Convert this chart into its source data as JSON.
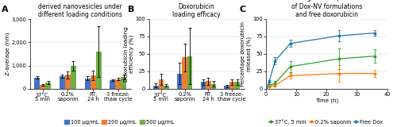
{
  "panel_a": {
    "title": "Size of doxorubicin loaded cell\nderived nanovesicles under\ndifferent loading conditions",
    "ylabel": "Z-average (nm)",
    "ylim": [
      0,
      3000
    ],
    "yticks": [
      0,
      1000,
      2000,
      3000
    ],
    "yticklabels": [
      "0",
      "1,000",
      "2,000",
      "3,000"
    ],
    "groups": [
      "37°C,\n5 min",
      "0.2%\nsaponin",
      "RT,\n24 h",
      "3 freeze-\nthaw cycle"
    ],
    "bars": {
      "100": [
        480,
        550,
        450,
        380
      ],
      "200": [
        180,
        600,
        580,
        420
      ],
      "500": [
        280,
        1000,
        1600,
        500
      ]
    },
    "errors": {
      "100": [
        50,
        60,
        80,
        40
      ],
      "200": [
        30,
        150,
        200,
        50
      ],
      "500": [
        60,
        200,
        1100,
        100
      ]
    }
  },
  "panel_b": {
    "title": "Doxorubicin\nloading efficacy",
    "ylabel": "Doxorubicin loading\nefficiency (%)",
    "ylim": [
      0,
      100
    ],
    "yticks": [
      0,
      25,
      50,
      75,
      100
    ],
    "yticklabels": [
      "0",
      "25",
      "50",
      "75",
      "100"
    ],
    "groups": [
      "37°C,\n5 min",
      "0.2%\nsaponin",
      "RT,\n24 h",
      "3 freeze-\nthaw cycle"
    ],
    "bars": {
      "100": [
        5,
        22,
        10,
        4
      ],
      "200": [
        14,
        45,
        11,
        10
      ],
      "500": [
        5,
        47,
        7,
        10
      ]
    },
    "errors": {
      "100": [
        3,
        15,
        4,
        2
      ],
      "200": [
        8,
        20,
        5,
        4
      ],
      "500": [
        2,
        40,
        4,
        4
      ]
    }
  },
  "panel_c": {
    "title": "Drug release profile\nof Dox-NV formulations\nand free doxorubicin",
    "xlabel": "Time (h)",
    "ylabel": "Percentage doxorubicin\nreleased (%)",
    "ylim": [
      0,
      100
    ],
    "yticks": [
      0,
      25,
      50,
      75,
      100
    ],
    "yticklabels": [
      "0",
      "25",
      "50",
      "75",
      "100"
    ],
    "xlim": [
      0,
      40
    ],
    "xticks": [
      0,
      10,
      20,
      30,
      40
    ],
    "lines": {
      "37C_5min": {
        "x": [
          0,
          1,
          3,
          8,
          24,
          36
        ],
        "y": [
          0,
          5,
          8,
          32,
          43,
          47
        ],
        "yerr": [
          0,
          2,
          3,
          8,
          15,
          10
        ],
        "color": "#2ca02c",
        "label": "37°C, 5 min"
      },
      "saponin": {
        "x": [
          0,
          1,
          3,
          8,
          24,
          36
        ],
        "y": [
          0,
          3,
          5,
          19,
          22,
          22
        ],
        "yerr": [
          0,
          1,
          2,
          4,
          12,
          5
        ],
        "color": "#ff7f0e",
        "label": "0.2% saponin"
      },
      "free_dox": {
        "x": [
          0,
          1,
          3,
          8,
          24,
          36
        ],
        "y": [
          0,
          10,
          40,
          65,
          76,
          80
        ],
        "yerr": [
          0,
          3,
          5,
          5,
          8,
          4
        ],
        "color": "#1f77b4",
        "label": "Free Dox"
      }
    }
  },
  "bar_legend": {
    "colors": [
      "#4472c4",
      "#ed7d31",
      "#70ad47"
    ],
    "labels": [
      "100 µg/mL",
      "200 µg/mL",
      "500 µg/mL"
    ]
  },
  "bar_colors": [
    "#4472c4",
    "#ed7d31",
    "#70ad47"
  ],
  "bar_width": 0.22,
  "label_fontsize": 5.0,
  "title_fontsize": 5.5,
  "tick_fontsize": 4.8,
  "panel_label_fontsize": 8
}
